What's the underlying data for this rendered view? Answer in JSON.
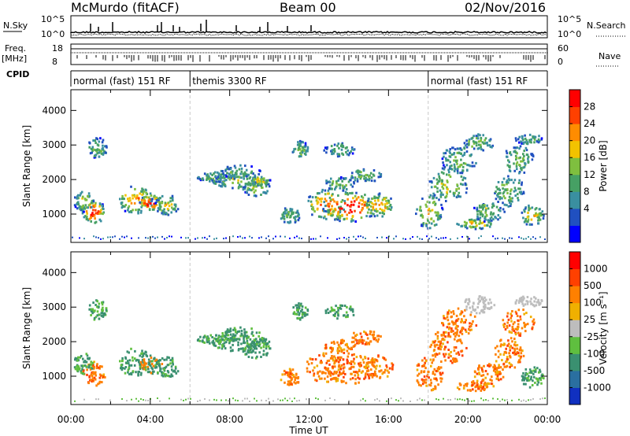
{
  "header": {
    "station": "McMurdo (fitACF)",
    "beam": "Beam 00",
    "date": "02/Nov/2016"
  },
  "panels_labels": {
    "nsky": "N.Sky",
    "nsearch": "N.Search",
    "freq_top": "Freq.",
    "freq_unit": "[MHz]",
    "nave": "Nave",
    "cpid": "CPID",
    "tick_1e5": "10^5",
    "tick_1e0": "10^0",
    "freq_hi": "18",
    "freq_lo": "8",
    "nave_hi": "60",
    "nave_lo": "0"
  },
  "cpid_segments": [
    {
      "label": "normal (fast) 151 RF",
      "start_h": 0,
      "end_h": 6
    },
    {
      "label": "themis 3300 RF",
      "start_h": 6,
      "end_h": 18
    },
    {
      "label": "normal (fast) 151 RF",
      "start_h": 18,
      "end_h": 24
    }
  ],
  "colors": {
    "power": [
      "#0000ff",
      "#2050c0",
      "#3a8fa0",
      "#46a064",
      "#7fbf3f",
      "#f2c200",
      "#ff8c00",
      "#ff4000",
      "#ff0000"
    ],
    "velocity": [
      "#1030c0",
      "#2a6fa0",
      "#3a9070",
      "#5fbf3f",
      "#bdbdbd",
      "#f0b000",
      "#ff8000",
      "#ff4000",
      "#ff0000"
    ]
  },
  "chart_data": [
    {
      "type": "heatmap",
      "name": "power",
      "ylabel": "Slant Range [km]",
      "xlabel": "Time UT",
      "colorbar_label": "Power [dB]",
      "colorbar_ticks": [
        "28",
        "24",
        "20",
        "16",
        "12",
        "8",
        "4"
      ],
      "yticks": [
        "1000",
        "2000",
        "3000",
        "4000"
      ],
      "xticks": [
        "00:00",
        "04:00",
        "08:00",
        "12:00",
        "16:00",
        "20:00",
        "00:00"
      ],
      "ylim": [
        180,
        4600
      ],
      "xlim_hours": [
        0,
        24
      ]
    },
    {
      "type": "heatmap",
      "name": "velocity",
      "ylabel": "Slant Range [km]",
      "xlabel": "Time UT",
      "colorbar_label": "Velocity [m s⁻¹]",
      "colorbar_ticks": [
        "1000",
        "500",
        "100",
        "25",
        "-25",
        "-100",
        "-500",
        "-1000"
      ],
      "yticks": [
        "1000",
        "2000",
        "3000",
        "4000"
      ],
      "xticks": [
        "00:00",
        "04:00",
        "08:00",
        "12:00",
        "16:00",
        "20:00",
        "00:00"
      ],
      "ylim": [
        180,
        4600
      ],
      "xlim_hours": [
        0,
        24
      ]
    }
  ],
  "xaxis_title": "Time UT"
}
